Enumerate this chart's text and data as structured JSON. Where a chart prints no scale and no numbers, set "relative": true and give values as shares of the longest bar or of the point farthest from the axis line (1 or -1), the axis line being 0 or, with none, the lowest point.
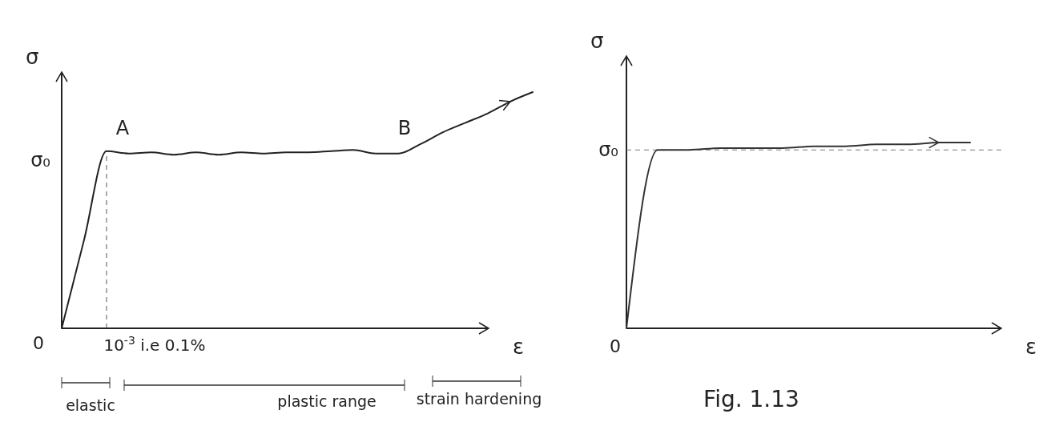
{
  "chart_data": [
    {
      "type": "line",
      "relative": true,
      "ylabel": "σ",
      "xlabel": "ε",
      "categories": [
        null,
        null,
        null,
        null,
        null,
        null,
        null,
        null,
        null,
        null,
        null,
        null,
        null,
        null,
        null,
        null,
        null,
        null,
        null,
        null,
        null,
        null
      ],
      "series": [
        {
          "color": "#222222",
          "values": [
            0,
            0.375,
            0.75,
            0.74,
            0.745,
            0.735,
            0.745,
            0.735,
            0.745,
            0.74,
            0.745,
            0.745,
            0.75,
            0.755,
            0.74,
            0.74,
            0.78,
            0.83,
            0.87,
            0.91,
            0.96,
            1
          ]
        }
      ],
      "annotations": [
        "A",
        "B",
        "σ₀",
        "0",
        "elastic",
        "plastic range",
        "strain hardening",
        "10$^{-3}$ i.e 0.1%"
      ]
    },
    {
      "type": "line",
      "relative": true,
      "ylabel": "σ",
      "xlabel": "ε",
      "categories": [
        null,
        null,
        null,
        null,
        null,
        null,
        null,
        null,
        null,
        null,
        null,
        null,
        null
      ],
      "series": [
        {
          "color": "#333333",
          "values": [
            0,
            0.96,
            0.96,
            0.97,
            0.97,
            0.97,
            0.98,
            0.98,
            0.99,
            0.99,
            1,
            1,
            null
          ]
        }
      ],
      "ref_lines": [
        {
          "axis": "y",
          "value": 0.96,
          "label": "σ₀",
          "line_style": "dashed"
        }
      ],
      "annotations": [
        "0",
        "Fig. 1.13"
      ]
    }
  ]
}
